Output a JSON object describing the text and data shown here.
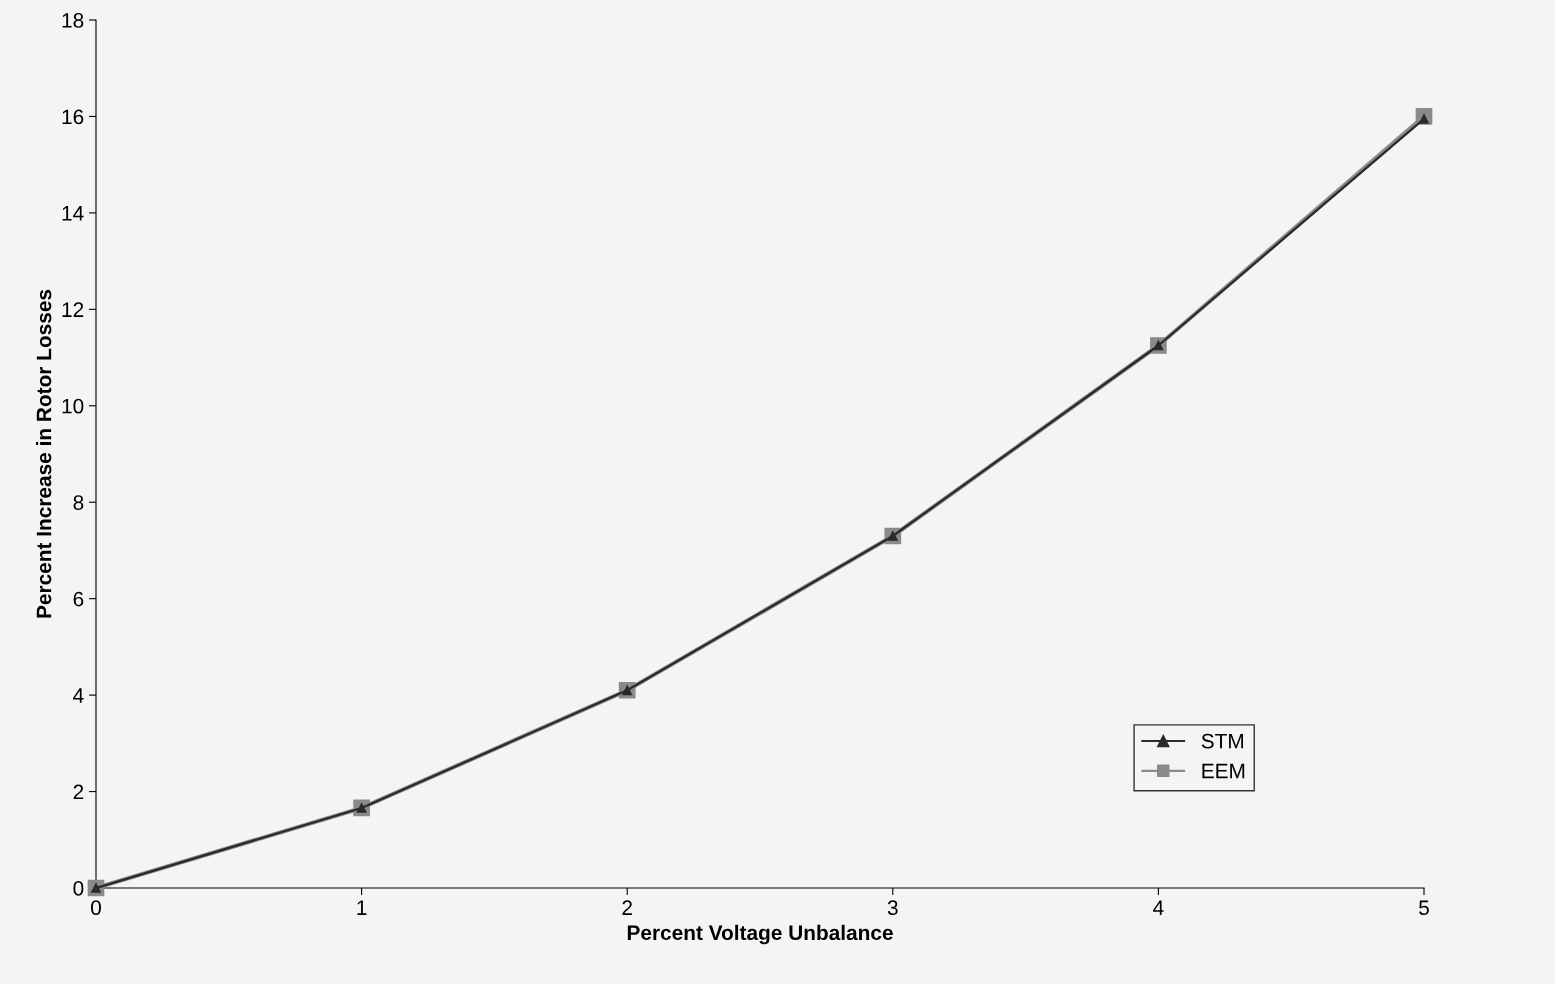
{
  "chart_data": {
    "type": "line",
    "xlabel": "Percent Voltage Unbalance",
    "ylabel": "Percent Increase in Rotor Losses",
    "x": [
      0,
      1,
      2,
      3,
      4,
      5
    ],
    "series": [
      {
        "name": "STM",
        "color": "#2a2a2a",
        "marker": "triangle",
        "values": [
          0,
          1.66,
          4.1,
          7.3,
          11.25,
          15.95
        ]
      },
      {
        "name": "EEM",
        "color": "#8a8a8a",
        "marker": "square",
        "values": [
          0,
          1.66,
          4.1,
          7.3,
          11.25,
          16.0
        ]
      }
    ],
    "xlim": [
      0,
      5
    ],
    "xticks": [
      0,
      1,
      2,
      3,
      4,
      5
    ],
    "ylim": [
      0,
      18
    ],
    "yticks": [
      0,
      2,
      4,
      6,
      8,
      10,
      12,
      14,
      16,
      18
    ],
    "grid": false,
    "legend": "bottom right",
    "line_style": "solid"
  }
}
